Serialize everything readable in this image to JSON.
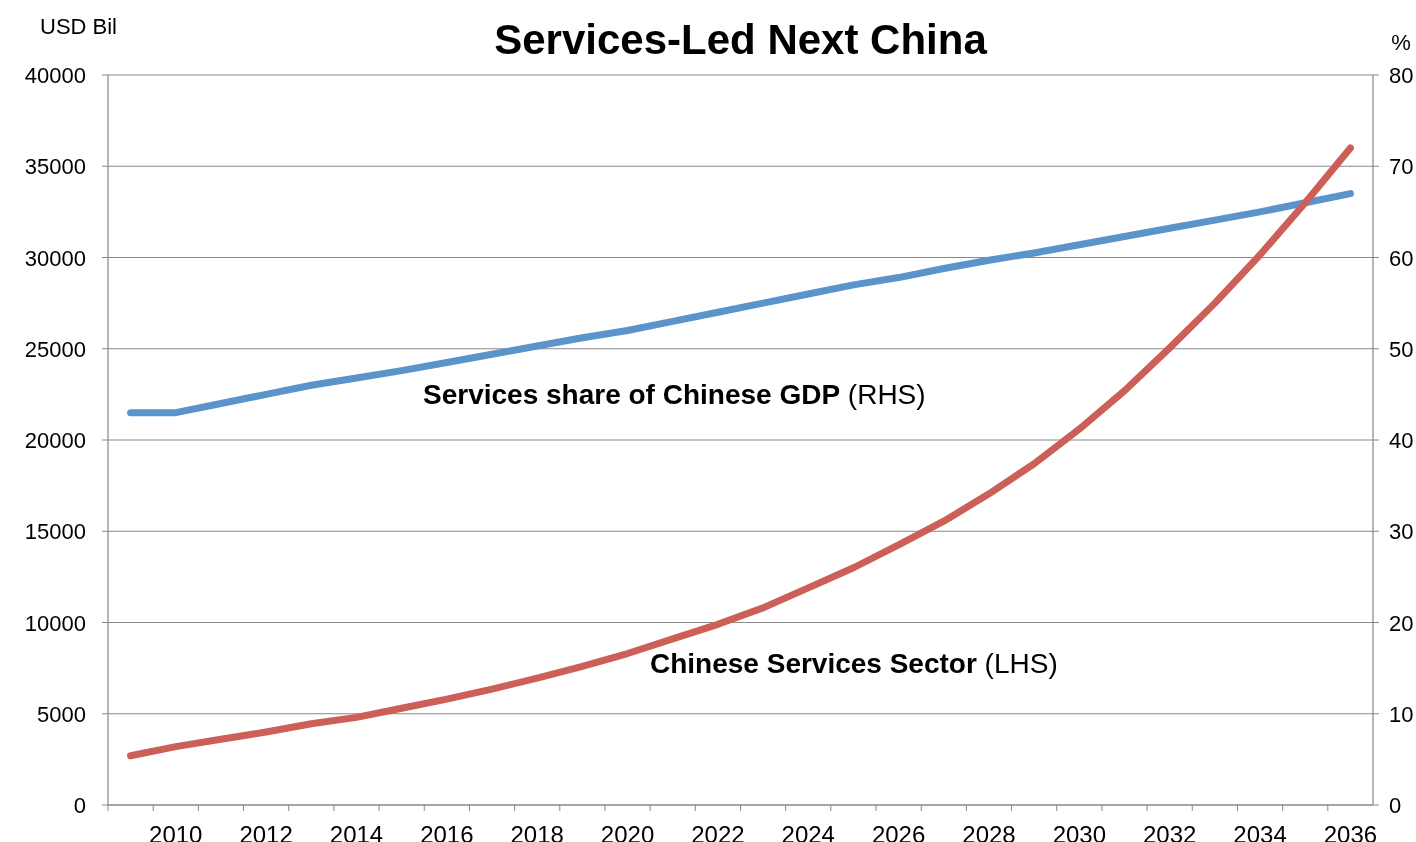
{
  "chart_data": {
    "type": "line",
    "title": "Services-Led Next China",
    "ylabel": "USD Bil",
    "y2label": "%",
    "categories": [
      null,
      "2010",
      null,
      "2012",
      null,
      "2014",
      null,
      "2016",
      null,
      "2018",
      null,
      "2020",
      null,
      "2022",
      null,
      "2024",
      null,
      "2026",
      null,
      "2028",
      null,
      "2030",
      null,
      "2032",
      null,
      "2034",
      null,
      "2036"
    ],
    "series": [
      {
        "name": "Services share of Chinese GDP (RHS)",
        "color": "#5b93cb",
        "axis": "y2",
        "values": [
          43,
          43,
          44,
          45,
          46,
          46.8,
          47.6,
          48.5,
          49.4,
          50.3,
          51.2,
          52,
          53,
          54,
          55,
          56,
          57,
          57.8,
          58.8,
          59.7,
          60.5,
          61.4,
          62.3,
          63.2,
          64.1,
          65,
          66,
          67
        ]
      },
      {
        "name": "Chinese Services Sector (LHS)",
        "color": "#cc5f57",
        "values": [
          2700,
          3200,
          3600,
          4000,
          4450,
          4800,
          5300,
          5800,
          6350,
          6950,
          7600,
          8300,
          9100,
          9900,
          10800,
          11900,
          13000,
          14250,
          15550,
          17050,
          18700,
          20600,
          22700,
          25050,
          27500,
          30150,
          33000,
          36000
        ]
      }
    ],
    "ylim": [
      0,
      40000
    ],
    "yticks": [
      0,
      5000,
      10000,
      15000,
      20000,
      25000,
      30000,
      35000,
      40000
    ],
    "y2lim": [
      0,
      80
    ],
    "y2ticks": [
      0,
      10,
      20,
      30,
      40,
      50,
      60,
      70,
      80
    ],
    "grid": "y",
    "legend": false,
    "marker": "none",
    "line_style": "solid"
  }
}
